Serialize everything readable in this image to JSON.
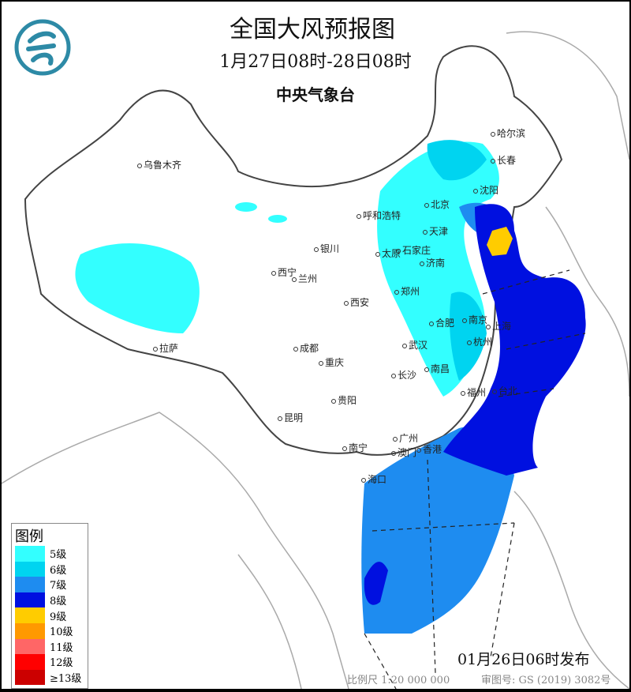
{
  "header": {
    "title": "全国大风预报图",
    "period": "1月27日08时-28日08时",
    "agency": "中央气象台"
  },
  "logo": {
    "name": "cma-logo",
    "color": "#2d8aa6"
  },
  "cities": [
    "乌鲁木齐",
    "哈尔滨",
    "长春",
    "沈阳",
    "呼和浩特",
    "北京",
    "天津",
    "石家庄",
    "太原",
    "济南",
    "银川",
    "西宁",
    "兰州",
    "郑州",
    "西安",
    "合肥",
    "南京",
    "上海",
    "成都",
    "武汉",
    "杭州",
    "重庆",
    "南昌",
    "长沙",
    "福州",
    "台北",
    "贵阳",
    "昆明",
    "广州",
    "南宁",
    "澳门",
    "香港",
    "海口",
    "拉萨"
  ],
  "legend": {
    "title": "图例",
    "items": [
      {
        "label": "5级",
        "color": "#33ffff"
      },
      {
        "label": "6级",
        "color": "#00d4f0"
      },
      {
        "label": "7级",
        "color": "#1e8cf0"
      },
      {
        "label": "8级",
        "color": "#0010e0"
      },
      {
        "label": "9级",
        "color": "#ffcc00"
      },
      {
        "label": "10级",
        "color": "#ff9900"
      },
      {
        "label": "11级",
        "color": "#ff6666"
      },
      {
        "label": "12级",
        "color": "#ff0000"
      },
      {
        "label": "≥13级",
        "color": "#cc0000"
      }
    ]
  },
  "footer": {
    "issued": "01月26日06时发布",
    "scale": "比例尺 1:20 000 000",
    "review": "审图号: GS (2019) 3082号"
  }
}
